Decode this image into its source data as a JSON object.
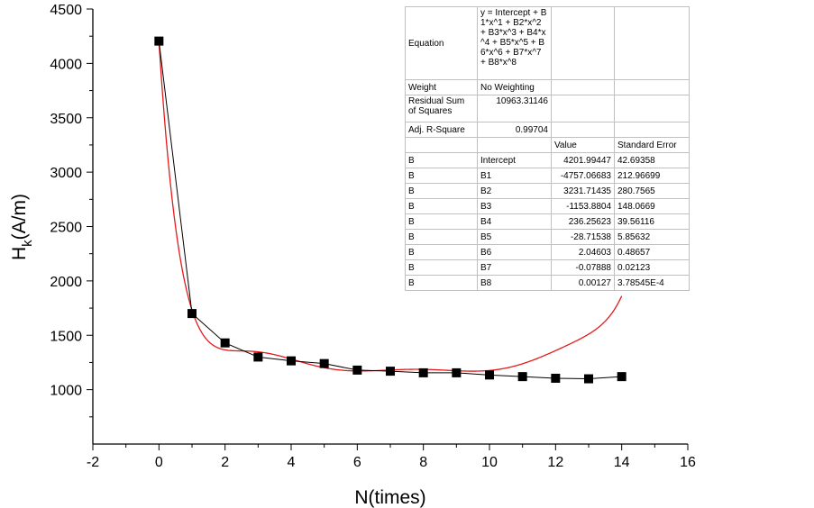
{
  "chart_data": {
    "type": "scatter",
    "xlabel": "N(times)",
    "ylabel_main": "H",
    "ylabel_sub": "k",
    "ylabel_rest": "(A/m)",
    "xlim": [
      -2,
      16
    ],
    "ylim": [
      500,
      4500
    ],
    "xticks": [
      -2,
      0,
      2,
      4,
      6,
      8,
      10,
      12,
      14,
      16
    ],
    "yticks": [
      1000,
      1500,
      2000,
      2500,
      3000,
      3500,
      4000,
      4500
    ],
    "grid": false,
    "series": [
      {
        "style": "black square markers connected by black line",
        "color": "#000000",
        "x": [
          0,
          1,
          2,
          3,
          4,
          5,
          6,
          7,
          8,
          9,
          10,
          11,
          12,
          13,
          14
        ],
        "y": [
          4205,
          1700,
          1430,
          1300,
          1265,
          1240,
          1180,
          1170,
          1155,
          1155,
          1135,
          1120,
          1105,
          1100,
          1120
        ]
      },
      {
        "style": "red polynomial fit curve (order 8)",
        "color": "#e41a1c",
        "coefficients": [
          4201.99447,
          -4757.06683,
          3231.71435,
          -1153.8804,
          236.25623,
          -28.71538,
          2.04603,
          -0.07888,
          0.00127
        ],
        "x_range": [
          0,
          14
        ]
      }
    ]
  },
  "fit_table": {
    "equation_label": "Equation",
    "equation_value": "y = Intercept + B1*x^1 + B2*x^2 + B3*x^3 + B4*x^4 + B5*x^5 + B6*x^6 + B7*x^7 + B8*x^8",
    "weight_label": "Weight",
    "weight_value": "No Weighting",
    "rss_label": "Residual Sum of Squares",
    "rss_value": "10963.31146",
    "adjr_label": "Adj. R-Square",
    "adjr_value": "0.99704",
    "header_value": "Value",
    "header_error": "Standard Error",
    "rows": [
      {
        "dep": "B",
        "param": "Intercept",
        "value": "4201.99447",
        "error": "42.69358"
      },
      {
        "dep": "B",
        "param": "B1",
        "value": "-4757.06683",
        "error": "212.96699"
      },
      {
        "dep": "B",
        "param": "B2",
        "value": "3231.71435",
        "error": "280.7565"
      },
      {
        "dep": "B",
        "param": "B3",
        "value": "-1153.8804",
        "error": "148.0669"
      },
      {
        "dep": "B",
        "param": "B4",
        "value": "236.25623",
        "error": "39.56116"
      },
      {
        "dep": "B",
        "param": "B5",
        "value": "-28.71538",
        "error": "5.85632"
      },
      {
        "dep": "B",
        "param": "B6",
        "value": "2.04603",
        "error": "0.48657"
      },
      {
        "dep": "B",
        "param": "B7",
        "value": "-0.07888",
        "error": "0.02123"
      },
      {
        "dep": "B",
        "param": "B8",
        "value": "0.00127",
        "error": "3.78545E-4"
      }
    ]
  }
}
